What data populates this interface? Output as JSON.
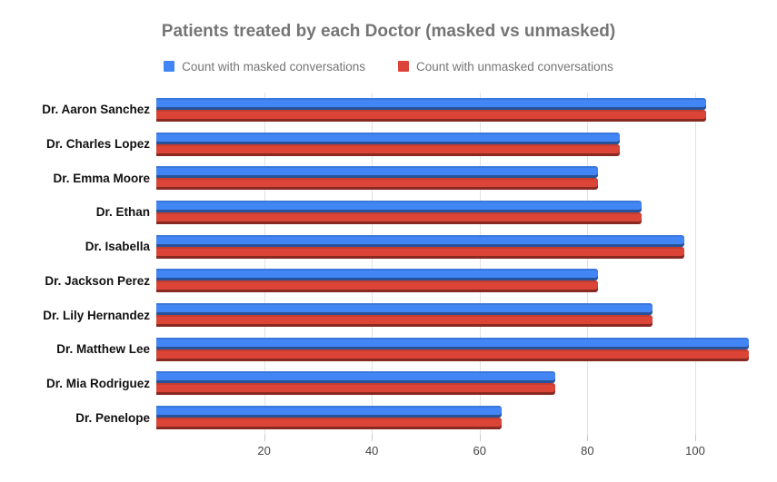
{
  "chart_data": {
    "type": "bar",
    "orientation": "horizontal",
    "title": "Patients treated by each Doctor (masked vs unmasked)",
    "categories": [
      "Dr. Aaron Sanchez",
      "Dr. Charles Lopez",
      "Dr. Emma Moore",
      "Dr. Ethan",
      "Dr. Isabella",
      "Dr. Jackson Perez",
      "Dr. Lily Hernandez",
      "Dr. Matthew Lee",
      "Dr. Mia Rodriguez",
      "Dr. Penelope"
    ],
    "series": [
      {
        "name": "Count with masked conversations",
        "color": "#4285f4",
        "values": [
          102,
          86,
          82,
          90,
          98,
          82,
          92,
          110,
          74,
          64
        ]
      },
      {
        "name": "Count with unmasked conversations",
        "color": "#db4437",
        "values": [
          102,
          86,
          82,
          90,
          98,
          82,
          92,
          110,
          74,
          64
        ]
      }
    ],
    "xticks": [
      20,
      40,
      60,
      80,
      100
    ],
    "xlim": [
      0,
      114
    ],
    "grid": true,
    "legend_position": "top",
    "title_color": "#757575",
    "gridline_color": "#e2e2e2"
  }
}
